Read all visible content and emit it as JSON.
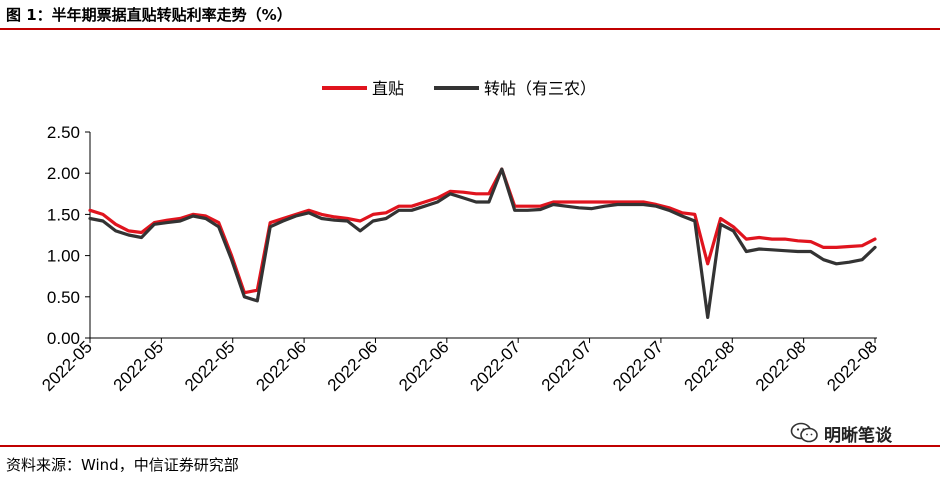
{
  "figure": {
    "title": "图 1：半年期票据直贴转贴利率走势（%）",
    "source": "资料来源：Wind，中信证券研究部",
    "watermark": "明晰笔谈"
  },
  "colors": {
    "accent_rule": "#c00000",
    "series_direct": "#e0141e",
    "series_rediscount": "#333333"
  },
  "chart_data": {
    "type": "line",
    "title": "",
    "xlabel": "",
    "ylabel": "",
    "ylim": [
      0,
      2.5
    ],
    "yticks": [
      "0.00",
      "0.50",
      "1.00",
      "1.50",
      "2.00",
      "2.50"
    ],
    "xticks": [
      "2022-05",
      "2022-05",
      "2022-05",
      "2022-06",
      "2022-06",
      "2022-06",
      "2022-07",
      "2022-07",
      "2022-07",
      "2022-08",
      "2022-08",
      "2022-08"
    ],
    "grid": false,
    "legend": "top-center",
    "x": [
      "2022-05-01",
      "2022-05-03",
      "2022-05-05",
      "2022-05-07",
      "2022-05-09",
      "2022-05-11",
      "2022-05-13",
      "2022-05-15",
      "2022-05-17",
      "2022-05-19",
      "2022-05-21",
      "2022-05-23",
      "2022-05-25",
      "2022-05-27",
      "2022-05-29",
      "2022-05-31",
      "2022-06-02",
      "2022-06-04",
      "2022-06-06",
      "2022-06-08",
      "2022-06-10",
      "2022-06-12",
      "2022-06-14",
      "2022-06-16",
      "2022-06-18",
      "2022-06-20",
      "2022-06-22",
      "2022-06-24",
      "2022-06-26",
      "2022-06-28",
      "2022-06-30",
      "2022-07-02",
      "2022-07-04",
      "2022-07-06",
      "2022-07-08",
      "2022-07-10",
      "2022-07-12",
      "2022-07-14",
      "2022-07-16",
      "2022-07-18",
      "2022-07-20",
      "2022-07-22",
      "2022-07-24",
      "2022-07-26",
      "2022-07-28",
      "2022-07-30",
      "2022-08-01",
      "2022-08-03",
      "2022-08-05",
      "2022-08-07",
      "2022-08-09",
      "2022-08-11",
      "2022-08-13",
      "2022-08-15",
      "2022-08-17",
      "2022-08-19",
      "2022-08-21",
      "2022-08-23",
      "2022-08-25",
      "2022-08-27",
      "2022-08-29",
      "2022-08-31"
    ],
    "series": [
      {
        "name": "直贴",
        "values": [
          1.55,
          1.5,
          1.38,
          1.3,
          1.28,
          1.4,
          1.43,
          1.45,
          1.5,
          1.48,
          1.4,
          1.0,
          0.55,
          0.58,
          1.4,
          1.45,
          1.5,
          1.55,
          1.5,
          1.47,
          1.45,
          1.42,
          1.5,
          1.52,
          1.6,
          1.6,
          1.65,
          1.7,
          1.78,
          1.77,
          1.75,
          1.75,
          2.05,
          1.6,
          1.6,
          1.6,
          1.65,
          1.65,
          1.65,
          1.65,
          1.65,
          1.65,
          1.65,
          1.65,
          1.62,
          1.58,
          1.52,
          1.5,
          0.9,
          1.45,
          1.35,
          1.2,
          1.22,
          1.2,
          1.2,
          1.18,
          1.17,
          1.1,
          1.1,
          1.11,
          1.12,
          1.2
        ]
      },
      {
        "name": "转帖（有三农）",
        "values": [
          1.45,
          1.42,
          1.3,
          1.25,
          1.22,
          1.38,
          1.4,
          1.42,
          1.48,
          1.45,
          1.35,
          0.95,
          0.5,
          0.45,
          1.35,
          1.42,
          1.48,
          1.52,
          1.45,
          1.43,
          1.42,
          1.3,
          1.42,
          1.45,
          1.55,
          1.55,
          1.6,
          1.65,
          1.75,
          1.7,
          1.65,
          1.65,
          2.05,
          1.55,
          1.55,
          1.56,
          1.62,
          1.6,
          1.58,
          1.57,
          1.6,
          1.62,
          1.62,
          1.62,
          1.6,
          1.55,
          1.48,
          1.42,
          0.25,
          1.38,
          1.3,
          1.05,
          1.08,
          1.07,
          1.06,
          1.05,
          1.05,
          0.95,
          0.9,
          0.92,
          0.95,
          1.1
        ]
      }
    ]
  }
}
